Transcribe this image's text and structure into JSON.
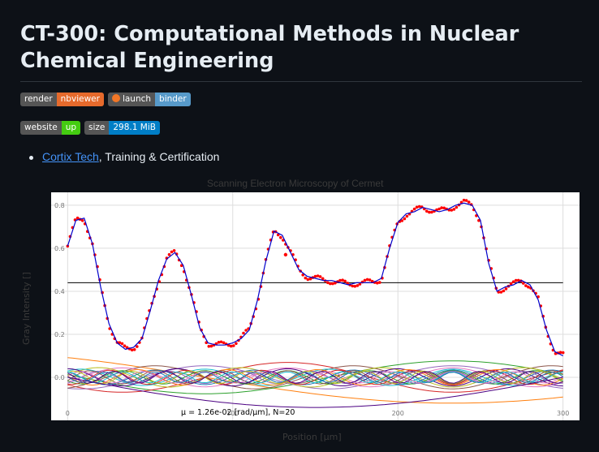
{
  "page": {
    "title": "CT-300: Computational Methods in Nuclear Chemical Engineering"
  },
  "badges_row1": [
    {
      "left": "render",
      "right": "nbviewer",
      "color": "#e66a2c",
      "icon": ""
    },
    {
      "left": "launch",
      "right": "binder",
      "color": "#579aca",
      "icon": "rocket-icon"
    }
  ],
  "badges_row2": [
    {
      "left": "website",
      "right": "up",
      "color": "#44cc11"
    },
    {
      "left": "size",
      "right": "298.1 MiB",
      "color": "#007ec6"
    }
  ],
  "links": [
    {
      "link_text": "Cortix Tech",
      "suffix": ", Training & Certification"
    }
  ],
  "chart_data": {
    "type": "line",
    "title": "Scanning Electron Microscopy of Cermet",
    "xlabel": "Position [μm]",
    "ylabel": "Gray Intensity []",
    "xlim": [
      -10,
      310
    ],
    "ylim": [
      -0.2,
      0.86
    ],
    "x_ticks": [
      "0",
      "100",
      "200",
      "300"
    ],
    "y_ticks": [
      "0.0",
      "0.2",
      "0.4",
      "0.6",
      "0.8"
    ],
    "annotation": "μ = 1.26e-02 [rad/μm],   N=20",
    "mean_level": 0.44,
    "series": [
      {
        "style": "fit-line",
        "color": "#0000cc",
        "x": [
          0,
          5,
          10,
          15,
          20,
          25,
          30,
          35,
          40,
          45,
          50,
          55,
          60,
          65,
          70,
          75,
          80,
          85,
          90,
          95,
          100,
          105,
          110,
          115,
          120,
          125,
          130,
          135,
          140,
          145,
          150,
          155,
          160,
          165,
          170,
          175,
          180,
          185,
          190,
          195,
          200,
          205,
          210,
          215,
          220,
          225,
          230,
          235,
          240,
          245,
          250,
          255,
          260,
          265,
          270,
          275,
          280,
          285,
          290,
          295,
          300
        ],
        "y": [
          0.61,
          0.73,
          0.74,
          0.62,
          0.42,
          0.25,
          0.16,
          0.13,
          0.14,
          0.18,
          0.31,
          0.45,
          0.55,
          0.58,
          0.52,
          0.38,
          0.23,
          0.16,
          0.15,
          0.15,
          0.16,
          0.18,
          0.22,
          0.36,
          0.54,
          0.68,
          0.66,
          0.58,
          0.5,
          0.47,
          0.46,
          0.45,
          0.45,
          0.44,
          0.43,
          0.44,
          0.44,
          0.44,
          0.46,
          0.6,
          0.72,
          0.76,
          0.77,
          0.79,
          0.78,
          0.77,
          0.78,
          0.8,
          0.81,
          0.8,
          0.73,
          0.53,
          0.4,
          0.42,
          0.43,
          0.45,
          0.43,
          0.36,
          0.22,
          0.12,
          0.1
        ]
      },
      {
        "style": "data-points",
        "color": "#ff0000"
      }
    ],
    "basis_colors": [
      "#1f77b4",
      "#ff7f0e",
      "#2ca02c",
      "#d62728",
      "#9467bd",
      "#8c564b",
      "#e377c2",
      "#bcbd22",
      "#17becf",
      "#4b0082"
    ]
  }
}
